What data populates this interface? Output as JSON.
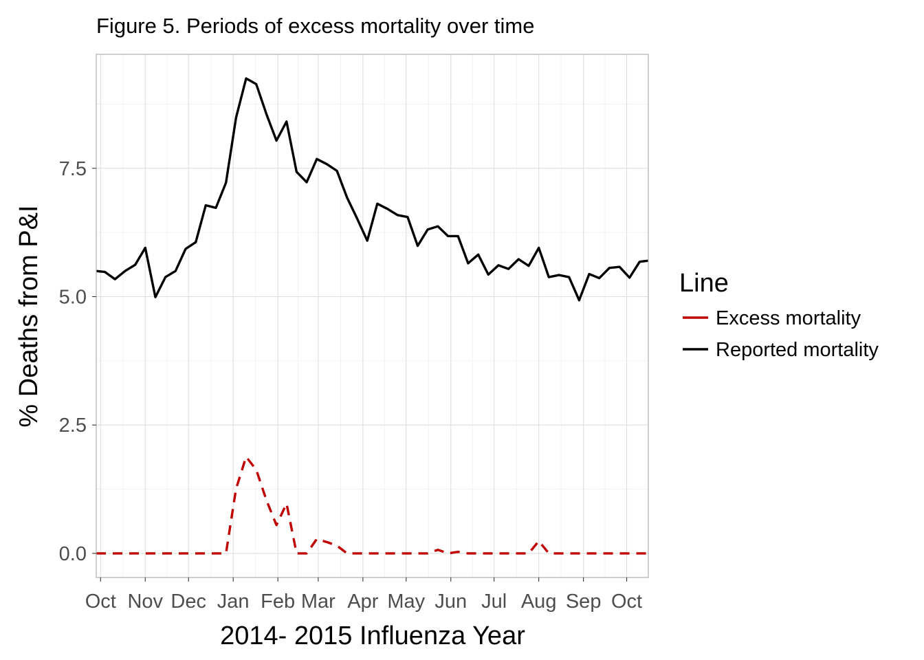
{
  "chart_data": {
    "type": "line",
    "title": "Figure 5. Periods of excess mortality over time",
    "xlabel": "2014- 2015 Influenza Year",
    "ylabel": "% Deaths from P&I",
    "x_tick_labels": [
      "Oct",
      "Nov",
      "Dec",
      "Jan",
      "Feb",
      "Mar",
      "Apr",
      "May",
      "Jun",
      "Jul",
      "Aug",
      "Sep",
      "Oct"
    ],
    "x_tick_dates": [
      "2014-10-01",
      "2014-11-01",
      "2014-12-01",
      "2015-01-01",
      "2015-02-01",
      "2015-03-01",
      "2015-04-01",
      "2015-05-01",
      "2015-06-01",
      "2015-07-01",
      "2015-08-01",
      "2015-09-01",
      "2015-10-01"
    ],
    "xlim": [
      "2014-09-28",
      "2015-10-16"
    ],
    "y_ticks": [
      0.0,
      2.5,
      5.0,
      7.5
    ],
    "y_tick_labels": [
      "0.0",
      "2.5",
      "5.0",
      "7.5"
    ],
    "ylim": [
      -0.47,
      9.72
    ],
    "grid": true,
    "legend": {
      "title": "Line",
      "position": "right",
      "entries": [
        "Excess mortality",
        "Reported mortality"
      ]
    },
    "series": [
      {
        "name": "Reported mortality",
        "color": "#000000",
        "dash": "solid",
        "x": [
          "2014-09-28",
          "2014-10-04",
          "2014-10-11",
          "2014-10-18",
          "2014-10-25",
          "2014-11-01",
          "2014-11-08",
          "2014-11-15",
          "2014-11-22",
          "2014-11-29",
          "2014-12-06",
          "2014-12-13",
          "2014-12-20",
          "2014-12-27",
          "2015-01-03",
          "2015-01-10",
          "2015-01-17",
          "2015-01-24",
          "2015-01-31",
          "2015-02-07",
          "2015-02-14",
          "2015-02-21",
          "2015-02-28",
          "2015-03-07",
          "2015-03-14",
          "2015-03-21",
          "2015-03-28",
          "2015-04-04",
          "2015-04-11",
          "2015-04-18",
          "2015-04-25",
          "2015-05-02",
          "2015-05-09",
          "2015-05-16",
          "2015-05-23",
          "2015-05-30",
          "2015-06-06",
          "2015-06-13",
          "2015-06-20",
          "2015-06-27",
          "2015-07-04",
          "2015-07-11",
          "2015-07-18",
          "2015-07-25",
          "2015-08-01",
          "2015-08-08",
          "2015-08-15",
          "2015-08-22",
          "2015-08-29",
          "2015-09-05",
          "2015-09-12",
          "2015-09-19",
          "2015-09-26",
          "2015-10-03",
          "2015-10-10",
          "2015-10-16"
        ],
        "values": [
          5.5,
          5.48,
          5.34,
          5.5,
          5.62,
          5.95,
          4.99,
          5.38,
          5.5,
          5.93,
          6.06,
          6.78,
          6.73,
          7.22,
          8.49,
          9.25,
          9.14,
          8.56,
          8.04,
          8.41,
          7.43,
          7.23,
          7.68,
          7.58,
          7.45,
          6.93,
          6.52,
          6.09,
          6.81,
          6.71,
          6.59,
          6.55,
          5.99,
          6.31,
          6.37,
          6.18,
          6.18,
          5.65,
          5.82,
          5.43,
          5.61,
          5.54,
          5.73,
          5.6,
          5.95,
          5.38,
          5.42,
          5.38,
          4.93,
          5.44,
          5.36,
          5.56,
          5.58,
          5.37,
          5.68,
          5.7
        ]
      },
      {
        "name": "Excess mortality",
        "color": "#c00000",
        "dash": "dashed",
        "x": [
          "2014-09-28",
          "2014-10-04",
          "2014-10-11",
          "2014-10-18",
          "2014-10-25",
          "2014-11-01",
          "2014-11-08",
          "2014-11-15",
          "2014-11-22",
          "2014-11-29",
          "2014-12-06",
          "2014-12-13",
          "2014-12-20",
          "2014-12-27",
          "2015-01-03",
          "2015-01-10",
          "2015-01-17",
          "2015-01-24",
          "2015-01-31",
          "2015-02-07",
          "2015-02-14",
          "2015-02-21",
          "2015-02-28",
          "2015-03-07",
          "2015-03-14",
          "2015-03-21",
          "2015-03-28",
          "2015-04-04",
          "2015-04-11",
          "2015-04-18",
          "2015-04-25",
          "2015-05-02",
          "2015-05-09",
          "2015-05-16",
          "2015-05-23",
          "2015-05-30",
          "2015-06-06",
          "2015-06-13",
          "2015-06-20",
          "2015-06-27",
          "2015-07-04",
          "2015-07-11",
          "2015-07-18",
          "2015-07-25",
          "2015-08-01",
          "2015-08-08",
          "2015-08-15",
          "2015-08-22",
          "2015-08-29",
          "2015-09-05",
          "2015-09-12",
          "2015-09-19",
          "2015-09-26",
          "2015-10-03",
          "2015-10-10",
          "2015-10-16"
        ],
        "values": [
          0,
          0,
          0,
          0,
          0,
          0,
          0,
          0,
          0,
          0,
          0,
          0,
          0,
          0,
          1.26,
          1.88,
          1.63,
          1.04,
          0.55,
          0.97,
          0.0,
          0.0,
          0.28,
          0.22,
          0.15,
          0.0,
          0.0,
          0.0,
          0.0,
          0.0,
          0.0,
          0.0,
          0.0,
          0.0,
          0.07,
          0.0,
          0.03,
          0.0,
          0.0,
          0.0,
          0.0,
          0.0,
          0.0,
          0.0,
          0.24,
          0.0,
          0.0,
          0.0,
          0.0,
          0.0,
          0.0,
          0.0,
          0.0,
          0.0,
          0.0,
          0.0
        ]
      }
    ]
  }
}
